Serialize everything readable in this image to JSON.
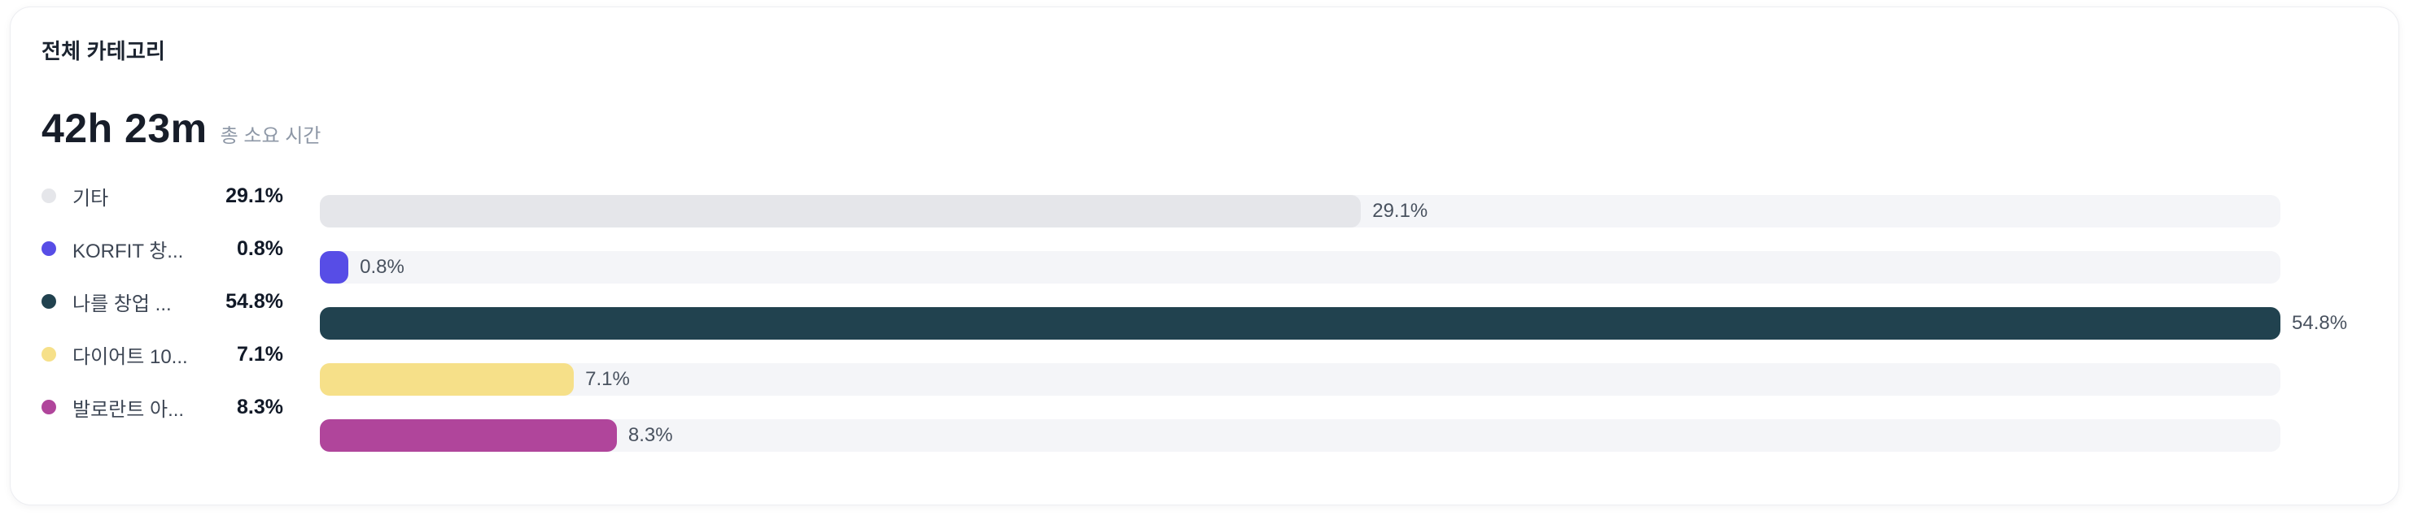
{
  "card": {
    "title": "전체 카테고리",
    "total_time": "42h 23m",
    "total_time_caption": "총 소요 시간"
  },
  "colors": {
    "card_background": "#ffffff",
    "card_border": "#ecedf1",
    "bar_track": "#f4f5f8",
    "title_text": "#1c2430",
    "total_text": "#171d29",
    "caption_text": "#8d97a6",
    "legend_label_text": "#3d4654",
    "legend_percent_text": "#111927",
    "bar_label_text": "#49525f"
  },
  "chart_data": {
    "type": "bar",
    "orientation": "horizontal",
    "title": "전체 카테고리",
    "total": "42h 23m",
    "total_caption": "총 소요 시간",
    "unit": "%",
    "scale": "bar width relative to max value (54.8% = full track)",
    "legend_position": "left",
    "grid": false,
    "categories": [
      "기타",
      "KORFIT 창...",
      "나를 창업 ...",
      "다이어트 10...",
      "발로란트 아..."
    ],
    "values": [
      29.1,
      0.8,
      54.8,
      7.1,
      8.3
    ],
    "value_labels": [
      "29.1%",
      "0.8%",
      "54.8%",
      "7.1%",
      "8.3%"
    ],
    "bar_colors": [
      "#e5e6ea",
      "#574de6",
      "#21424f",
      "#f6e089",
      "#b0459b"
    ]
  }
}
